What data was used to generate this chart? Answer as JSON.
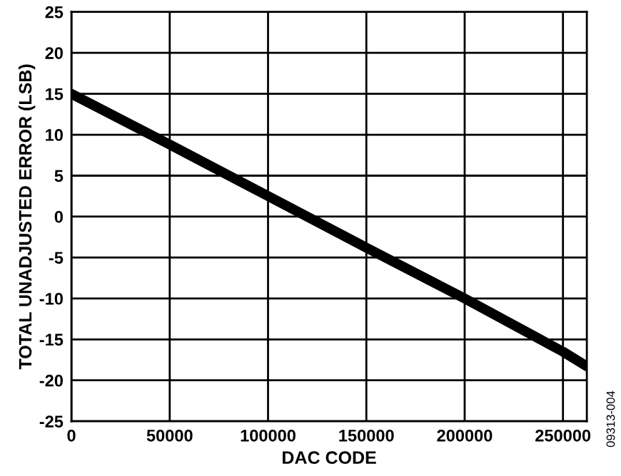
{
  "chart_data": {
    "type": "line",
    "xlabel": "DAC CODE",
    "ylabel": "TOTAL UNADJUSTED ERROR (LSB)",
    "annotations": [
      "09313-004"
    ],
    "x": [
      0,
      50000,
      100000,
      150000,
      200000,
      250000,
      262143
    ],
    "series": [
      {
        "color": "#000000",
        "values": [
          15,
          8.8,
          2.5,
          -3.8,
          -10,
          -16.5,
          -18.3
        ]
      }
    ],
    "xlim": [
      0,
      262143
    ],
    "xticks": [
      0,
      50000,
      100000,
      150000,
      200000,
      250000
    ],
    "ylim": [
      -25,
      25
    ],
    "yticks": [
      -25,
      -20,
      -15,
      -10,
      -5,
      0,
      5,
      10,
      15,
      20,
      25
    ],
    "grid": true,
    "marker": "none",
    "line_style": "solid"
  }
}
